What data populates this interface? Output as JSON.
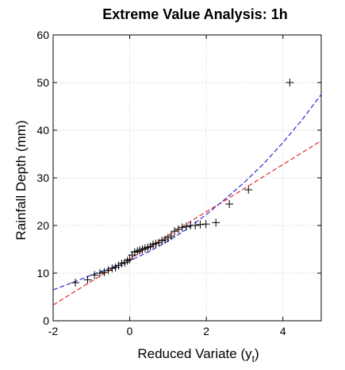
{
  "chart_data": {
    "type": "scatter",
    "title": "Extreme Value Analysis: 1h",
    "xlabel": "Reduced Variate (y",
    "xlabel_subscript": "t",
    "xlabel_close": ")",
    "ylabel": "Rainfall Depth (mm)",
    "xlim": [
      -2,
      5
    ],
    "ylim": [
      0,
      60
    ],
    "xticks": [
      -2,
      0,
      2,
      4
    ],
    "yticks": [
      0,
      10,
      20,
      30,
      40,
      50,
      60
    ],
    "grid": true,
    "colors": {
      "points": "#000000",
      "fit_red": "#e8262a",
      "fit_blue": "#2a2ad8",
      "grid": "#c8c8c8"
    },
    "series": [
      {
        "type": "scatter",
        "marker": "+",
        "x": [
          -1.42,
          -1.1,
          -0.92,
          -0.78,
          -0.66,
          -0.56,
          -0.46,
          -0.37,
          -0.29,
          -0.21,
          -0.13,
          -0.06,
          0.0,
          0.06,
          0.13,
          0.2,
          0.26,
          0.33,
          0.4,
          0.47,
          0.54,
          0.61,
          0.68,
          0.76,
          0.84,
          0.92,
          1.0,
          1.08,
          1.17,
          1.27,
          1.37,
          1.48,
          1.59,
          1.71,
          1.84,
          1.99,
          2.25,
          2.6,
          3.1,
          4.18
        ],
        "y": [
          8.0,
          8.6,
          9.6,
          10.0,
          10.2,
          10.6,
          11.0,
          11.2,
          11.6,
          12.0,
          12.2,
          12.6,
          12.9,
          13.8,
          14.4,
          14.6,
          14.8,
          15.0,
          15.2,
          15.4,
          15.6,
          16.0,
          16.2,
          16.4,
          16.8,
          17.0,
          17.4,
          17.8,
          18.8,
          19.2,
          19.6,
          19.8,
          20.0,
          20.0,
          20.2,
          20.3,
          20.6,
          24.5,
          27.5,
          50.0
        ]
      },
      {
        "type": "line",
        "style": "dashed",
        "color": "#e8262a",
        "x": [
          -2,
          -1.5,
          -1,
          -0.5,
          0,
          0.5,
          1,
          1.5,
          2,
          2.5,
          3,
          3.5,
          4,
          4.5,
          5
        ],
        "y": [
          3.3,
          5.8,
          8.3,
          10.7,
          13.0,
          15.4,
          17.9,
          20.4,
          22.9,
          25.3,
          27.8,
          30.3,
          32.8,
          35.3,
          37.8
        ]
      },
      {
        "type": "line",
        "style": "dashed",
        "color": "#2a2ad8",
        "x": [
          -2,
          -1.5,
          -1,
          -0.5,
          0,
          0.5,
          1,
          1.5,
          2,
          2.5,
          3,
          3.5,
          4,
          4.5,
          5
        ],
        "y": [
          6.5,
          8.0,
          9.6,
          11.1,
          12.6,
          14.5,
          16.7,
          19.3,
          22.3,
          25.6,
          29.1,
          33.0,
          37.4,
          42.2,
          47.5
        ]
      }
    ]
  }
}
